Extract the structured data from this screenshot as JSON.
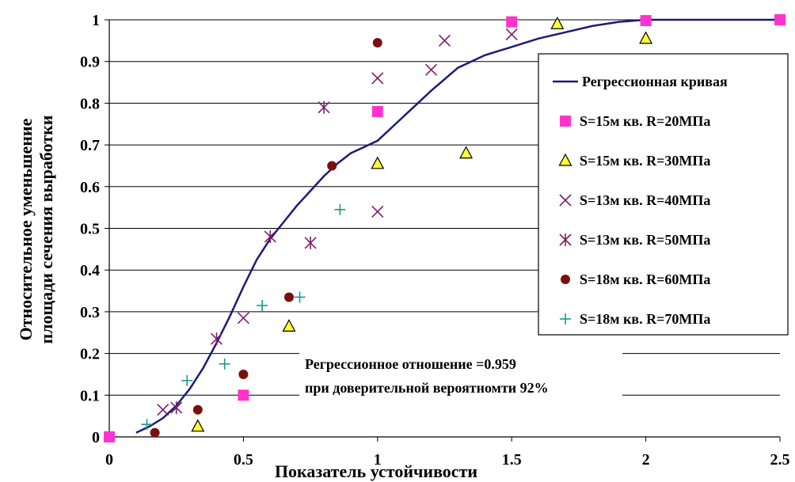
{
  "chart_data": {
    "type": "scatter",
    "title": "",
    "xlabel": "Показатель устойчивости",
    "ylabel_lines": [
      "Относительное уменьшение",
      "площади сечения выработки"
    ],
    "xlim": [
      0,
      2.5
    ],
    "ylim": [
      0,
      1
    ],
    "xticks": [
      0,
      0.5,
      1,
      1.5,
      2,
      2.5
    ],
    "xtick_labels": [
      "0",
      "0.5",
      "1",
      "1.5",
      "2",
      "2.5"
    ],
    "yticks": [
      0,
      0.1,
      0.2,
      0.3,
      0.4,
      0.5,
      0.6,
      0.7,
      0.8,
      0.9,
      1
    ],
    "ytick_labels": [
      "0",
      "0.1",
      "0.2",
      "0.3",
      "0.4",
      "0.5",
      "0.6",
      "0.7",
      "0.8",
      "0.9",
      "1"
    ],
    "grid": "horizontal",
    "legend_position": "right",
    "curve": {
      "name": "Регрессионная кривая",
      "color": "#1f1a7a",
      "x": [
        0.1,
        0.15,
        0.2,
        0.25,
        0.3,
        0.35,
        0.4,
        0.45,
        0.5,
        0.55,
        0.6,
        0.65,
        0.7,
        0.75,
        0.8,
        0.85,
        0.9,
        0.95,
        1.0,
        1.1,
        1.2,
        1.3,
        1.4,
        1.5,
        1.6,
        1.7,
        1.8,
        1.9,
        2.0,
        2.1,
        2.2,
        2.3,
        2.4,
        2.5
      ],
      "y": [
        0.01,
        0.025,
        0.045,
        0.075,
        0.115,
        0.165,
        0.225,
        0.29,
        0.36,
        0.425,
        0.475,
        0.515,
        0.555,
        0.59,
        0.625,
        0.655,
        0.68,
        0.695,
        0.71,
        0.77,
        0.83,
        0.885,
        0.915,
        0.935,
        0.955,
        0.97,
        0.985,
        0.995,
        1.0,
        1.0,
        1.0,
        1.0,
        1.0,
        1.0
      ]
    },
    "series": [
      {
        "name": "S=15м кв. R=20МПа",
        "marker": "square",
        "color": "#ff33cc",
        "x": [
          0,
          0.5,
          1.0,
          1.5,
          2.0,
          2.5
        ],
        "y": [
          0,
          0.1,
          0.78,
          0.995,
          0.998,
          1.0
        ]
      },
      {
        "name": "S=15м кв. R=30МПа",
        "marker": "triangle",
        "color": "#ffff33",
        "x": [
          0.33,
          0.67,
          1.0,
          1.33,
          1.67,
          2.0
        ],
        "y": [
          0.025,
          0.265,
          0.655,
          0.68,
          0.99,
          0.955
        ]
      },
      {
        "name": "S=13м кв. R=40МПа",
        "marker": "x",
        "color": "#7b1f6a",
        "x": [
          0.2,
          0.5,
          1.0,
          1.0,
          1.2,
          1.25,
          1.5
        ],
        "y": [
          0.065,
          0.285,
          0.54,
          0.86,
          0.88,
          0.95,
          0.965
        ]
      },
      {
        "name": "S=13м кв. R=50МПа",
        "marker": "asterisk",
        "color": "#7b1f6a",
        "x": [
          0.25,
          0.4,
          0.6,
          0.75,
          0.8
        ],
        "y": [
          0.07,
          0.235,
          0.48,
          0.465,
          0.79
        ]
      },
      {
        "name": "S=18м кв. R=60МПа",
        "marker": "circle",
        "color": "#7a0f0f",
        "x": [
          0.17,
          0.33,
          0.5,
          0.67,
          0.83,
          1.0
        ],
        "y": [
          0.01,
          0.065,
          0.15,
          0.335,
          0.65,
          0.945
        ]
      },
      {
        "name": "S=18м кв. R=70МПа",
        "marker": "plus",
        "color": "#1a9a8a",
        "x": [
          0.14,
          0.29,
          0.43,
          0.57,
          0.71,
          0.86
        ],
        "y": [
          0.03,
          0.135,
          0.175,
          0.315,
          0.335,
          0.545
        ]
      }
    ],
    "annotation_lines": [
      "Регрессионное отношение =0.959",
      "при  доверительной вероятномти 92%"
    ]
  }
}
